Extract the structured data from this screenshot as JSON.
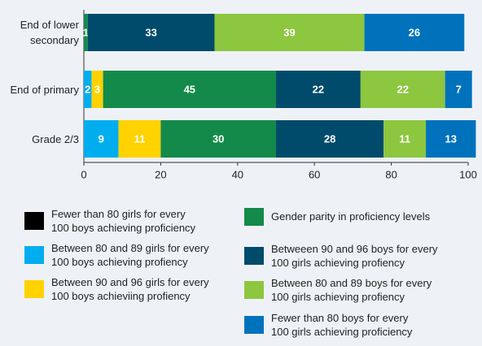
{
  "chart_data": {
    "type": "stacked-bar-horizontal",
    "categories": [
      "End of lower\nsecondary",
      "End of primary",
      "Grade 2/3"
    ],
    "series": [
      {
        "name": "Fewer than 80 girls for every\n100 boys achieving proficiency",
        "color": "#000000",
        "values": [
          null,
          null,
          null
        ]
      },
      {
        "name": "Between 80 and 89 girls for every\n100 boys achieving profiency",
        "color": "#00aeef",
        "values": [
          null,
          2,
          9
        ]
      },
      {
        "name": "Between 90 and 96 girls for every\n100 boys achieviing profiency",
        "color": "#ffd200",
        "values": [
          null,
          3,
          11
        ]
      },
      {
        "name": "Gender parity in proficiency levels",
        "color": "#138a4a",
        "values": [
          1,
          45,
          30
        ]
      },
      {
        "name": "Betweeen 90 and 96 boys for every\n100 girls achieving profiency",
        "color": "#004b6b",
        "values": [
          33,
          22,
          28
        ]
      },
      {
        "name": "Between 80 and 89 boys for every\n100 girls achieving profiency",
        "color": "#8dc63f",
        "values": [
          39,
          22,
          11
        ]
      },
      {
        "name": "Fewer than 80 boys for every\n100 girls achieving proficiency",
        "color": "#0072bc",
        "values": [
          26,
          7,
          13
        ]
      }
    ],
    "xlim": [
      0,
      100
    ],
    "xticks": [
      0,
      20,
      40,
      60,
      80,
      100
    ]
  }
}
